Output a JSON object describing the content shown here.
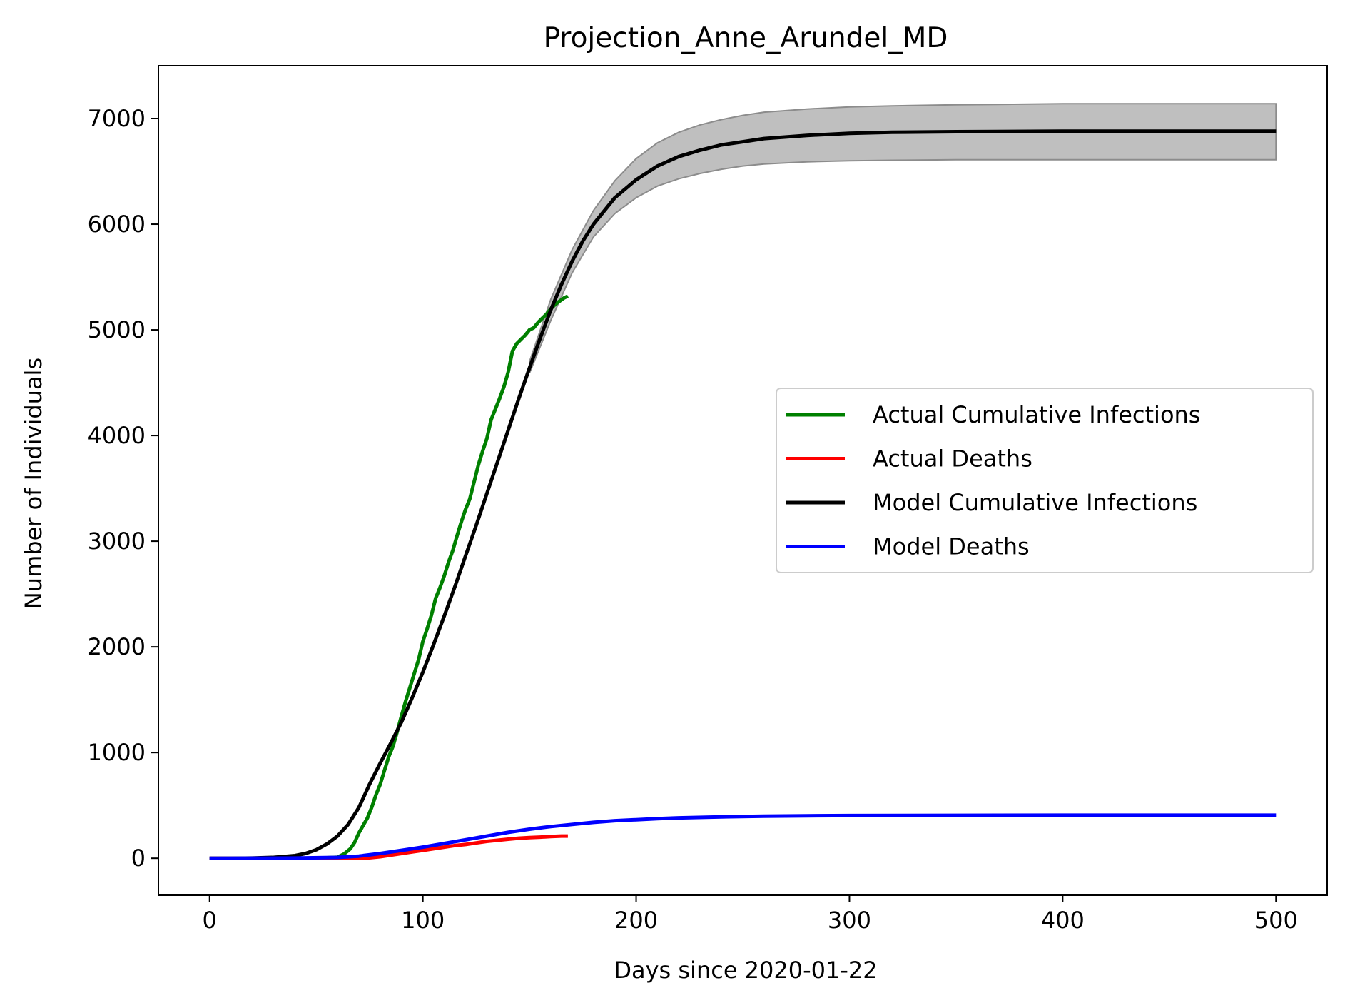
{
  "chart_data": {
    "type": "line",
    "title": "Projection_Anne_Arundel_MD",
    "xlabel": "Days since 2020-01-22",
    "ylabel": "Number of Individuals",
    "xlim": [
      -24,
      524
    ],
    "ylim": [
      -350,
      7500
    ],
    "xticks": [
      0,
      100,
      200,
      300,
      400,
      500
    ],
    "yticks": [
      0,
      1000,
      2000,
      3000,
      4000,
      5000,
      6000,
      7000
    ],
    "grid": false,
    "legend_position": "center-right",
    "series": [
      {
        "name": "Actual Cumulative Infections",
        "color": "#008000",
        "x": [
          0,
          20,
          40,
          55,
          60,
          63,
          66,
          68,
          70,
          72,
          74,
          76,
          78,
          80,
          82,
          84,
          86,
          88,
          90,
          92,
          94,
          96,
          98,
          100,
          102,
          104,
          106,
          108,
          110,
          112,
          114,
          116,
          118,
          120,
          122,
          124,
          126,
          128,
          130,
          132,
          134,
          136,
          138,
          140,
          142,
          144,
          146,
          148,
          150,
          152,
          154,
          156,
          158,
          160,
          162,
          164,
          166,
          168
        ],
        "y": [
          0,
          0,
          0,
          5,
          10,
          40,
          90,
          150,
          240,
          310,
          380,
          480,
          600,
          700,
          830,
          960,
          1060,
          1200,
          1350,
          1490,
          1620,
          1750,
          1880,
          2050,
          2170,
          2300,
          2460,
          2560,
          2670,
          2800,
          2910,
          3050,
          3180,
          3300,
          3400,
          3560,
          3720,
          3850,
          3970,
          4150,
          4250,
          4350,
          4460,
          4600,
          4800,
          4870,
          4910,
          4950,
          5000,
          5020,
          5070,
          5110,
          5150,
          5200,
          5240,
          5270,
          5300,
          5320
        ]
      },
      {
        "name": "Actual Deaths",
        "color": "#ff0000",
        "x": [
          0,
          50,
          65,
          70,
          75,
          80,
          85,
          90,
          95,
          100,
          105,
          110,
          115,
          120,
          125,
          130,
          135,
          140,
          145,
          150,
          155,
          160,
          165,
          168
        ],
        "y": [
          0,
          0,
          0,
          0,
          5,
          15,
          30,
          45,
          60,
          75,
          90,
          105,
          120,
          130,
          145,
          160,
          170,
          180,
          190,
          195,
          200,
          205,
          210,
          210
        ]
      },
      {
        "name": "Model Cumulative Infections",
        "color": "#000000",
        "x": [
          0,
          10,
          20,
          30,
          40,
          45,
          50,
          55,
          60,
          65,
          70,
          75,
          80,
          85,
          90,
          95,
          100,
          105,
          110,
          115,
          120,
          125,
          130,
          135,
          140,
          145,
          150,
          155,
          160,
          165,
          170,
          175,
          180,
          190,
          200,
          210,
          220,
          230,
          240,
          250,
          260,
          280,
          300,
          320,
          350,
          400,
          450,
          500
        ],
        "y": [
          0,
          0,
          2,
          8,
          25,
          45,
          80,
          135,
          210,
          320,
          480,
          700,
          900,
          1090,
          1290,
          1520,
          1760,
          2020,
          2290,
          2570,
          2860,
          3150,
          3450,
          3750,
          4050,
          4350,
          4640,
          4920,
          5190,
          5430,
          5650,
          5840,
          6000,
          6250,
          6420,
          6550,
          6640,
          6700,
          6750,
          6780,
          6810,
          6840,
          6860,
          6870,
          6875,
          6880,
          6880,
          6880
        ]
      },
      {
        "name": "Model Deaths",
        "color": "#0000ff",
        "x": [
          0,
          40,
          60,
          70,
          80,
          90,
          100,
          110,
          120,
          130,
          140,
          150,
          160,
          170,
          180,
          190,
          200,
          210,
          220,
          240,
          260,
          280,
          300,
          350,
          400,
          450,
          500
        ],
        "y": [
          0,
          2,
          8,
          20,
          45,
          75,
          105,
          140,
          175,
          210,
          245,
          275,
          300,
          320,
          340,
          355,
          365,
          375,
          382,
          392,
          398,
          402,
          404,
          406,
          407,
          407,
          407
        ]
      }
    ],
    "band": {
      "x": [
        150,
        160,
        170,
        180,
        190,
        200,
        210,
        220,
        230,
        240,
        250,
        260,
        280,
        300,
        320,
        350,
        400,
        450,
        500
      ],
      "upper": [
        4700,
        5290,
        5760,
        6130,
        6410,
        6620,
        6770,
        6870,
        6940,
        6990,
        7030,
        7060,
        7090,
        7110,
        7120,
        7130,
        7140,
        7140,
        7140
      ],
      "lower": [
        4590,
        5090,
        5540,
        5880,
        6100,
        6250,
        6360,
        6430,
        6480,
        6520,
        6550,
        6570,
        6590,
        6600,
        6605,
        6610,
        6610,
        6610,
        6610
      ],
      "color": "#bfbfbf"
    }
  }
}
